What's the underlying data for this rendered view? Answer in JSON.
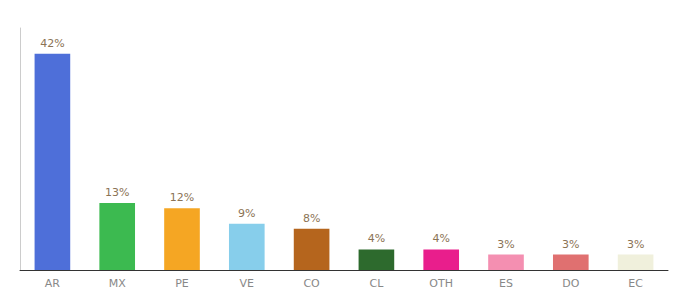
{
  "chart_data": {
    "type": "bar",
    "categories": [
      "AR",
      "MX",
      "PE",
      "VE",
      "CO",
      "CL",
      "OTH",
      "ES",
      "DO",
      "EC"
    ],
    "values": [
      42,
      13,
      12,
      9,
      8,
      4,
      4,
      3,
      3,
      3
    ],
    "value_labels": [
      "42%",
      "13%",
      "12%",
      "9%",
      "8%",
      "4%",
      "4%",
      "3%",
      "3%",
      "3%"
    ],
    "colors": [
      "#4e6fd9",
      "#3cba50",
      "#f5a623",
      "#87ceeb",
      "#b5651d",
      "#2d6a2d",
      "#e91e8c",
      "#f48fb1",
      "#e07070",
      "#f0f0dc"
    ],
    "ylim": [
      0,
      47
    ],
    "data_labels": true,
    "tick_labels": "x",
    "grid": false
  }
}
